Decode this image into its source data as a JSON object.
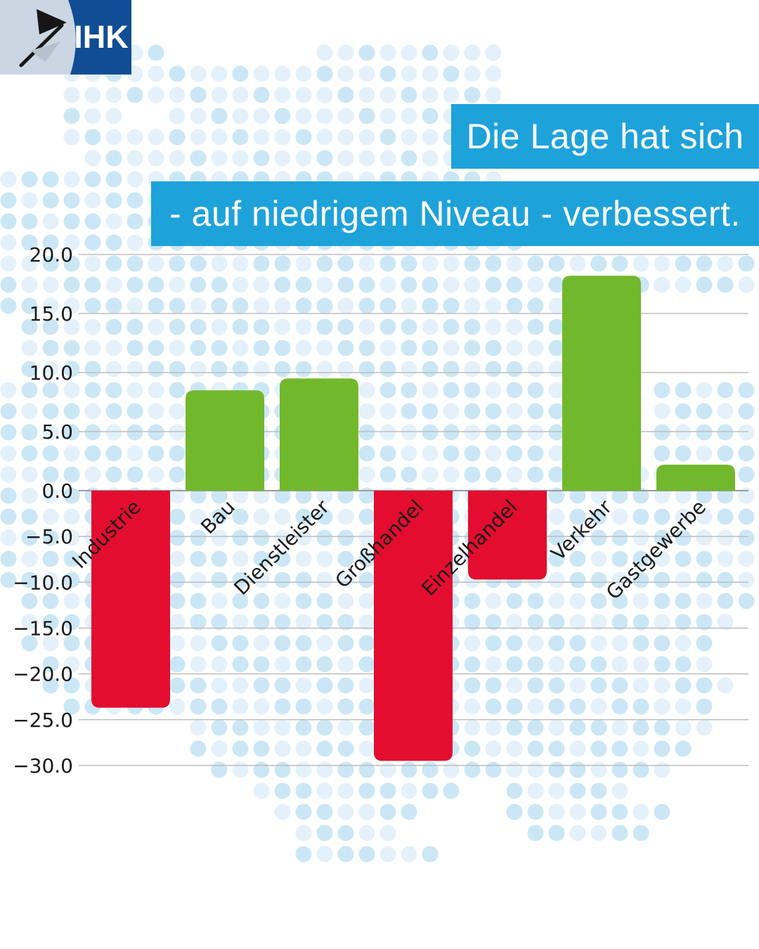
{
  "title": {
    "line1": "Die Lage hat sich",
    "line2": "- auf niedrigem Niveau - verbessert."
  },
  "logo": {
    "text": "IHK"
  },
  "colors": {
    "banner_blue": "#1EA2DA",
    "banner_text": "#FFFFFF",
    "positive_green": "#72B82C",
    "negative_red": "#E30D2F",
    "gridline": "#BDBDBD",
    "zero_line": "#9B9B9B",
    "label_text": "#1A1A1A",
    "dot_light": "#E4F1FA",
    "dot_medium": "#CBE7F5",
    "logo_blue": "#114D94",
    "logo_light": "#CBD6E3",
    "logo_flag_black": "#161616",
    "logo_flag_gray": "#B6C1CB"
  },
  "chart_data": {
    "type": "bar",
    "title": "Die Lage hat sich - auf niedrigem Niveau - verbessert.",
    "categories": [
      "Industrie",
      "Bau",
      "Dienstleister",
      "Großhandel",
      "Einzelhandel",
      "Verkehr",
      "Gastgewerbe"
    ],
    "values": [
      -23.7,
      8.5,
      9.5,
      -29.5,
      -9.7,
      18.2,
      2.2
    ],
    "ytick_values": [
      20,
      15,
      10,
      5,
      0,
      -5,
      -10,
      -15,
      -20,
      -25,
      -30
    ],
    "ytick_labels": [
      "20.0",
      "15.0",
      "10.0",
      "5.0",
      "0.0",
      "−5.0",
      "−10.0",
      "−15.0",
      "−20.0",
      "−25.0",
      "−30.0"
    ],
    "ylim": [
      -30,
      20
    ],
    "xlabel": "",
    "ylabel": "",
    "grid": true,
    "legend": false,
    "bar_label_rotation_deg": 45
  }
}
